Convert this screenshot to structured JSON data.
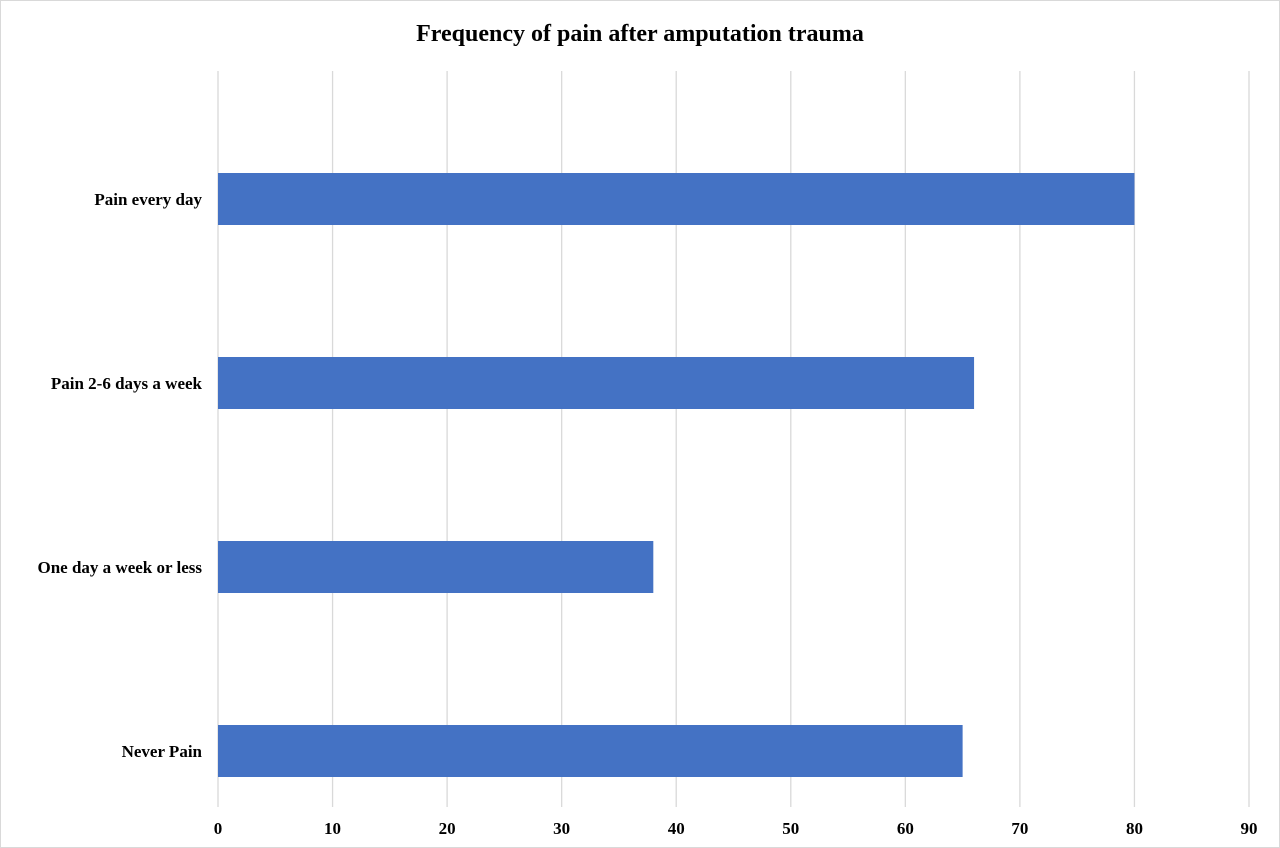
{
  "chart_data": {
    "type": "bar",
    "orientation": "horizontal",
    "title": "Frequency of pain after amputation trauma",
    "xlabel": "",
    "ylabel": "",
    "categories": [
      "Pain every day",
      "Pain 2-6 days a week",
      "One day a week or less",
      "Never Pain"
    ],
    "values": [
      80,
      66,
      38,
      65
    ],
    "xlim": [
      0,
      90
    ],
    "xticks": [
      "0",
      "10",
      "20",
      "30",
      "40",
      "50",
      "60",
      "70",
      "80",
      "90"
    ],
    "grid": "vertical",
    "bar_color": "#4472C4",
    "legend": "none"
  }
}
